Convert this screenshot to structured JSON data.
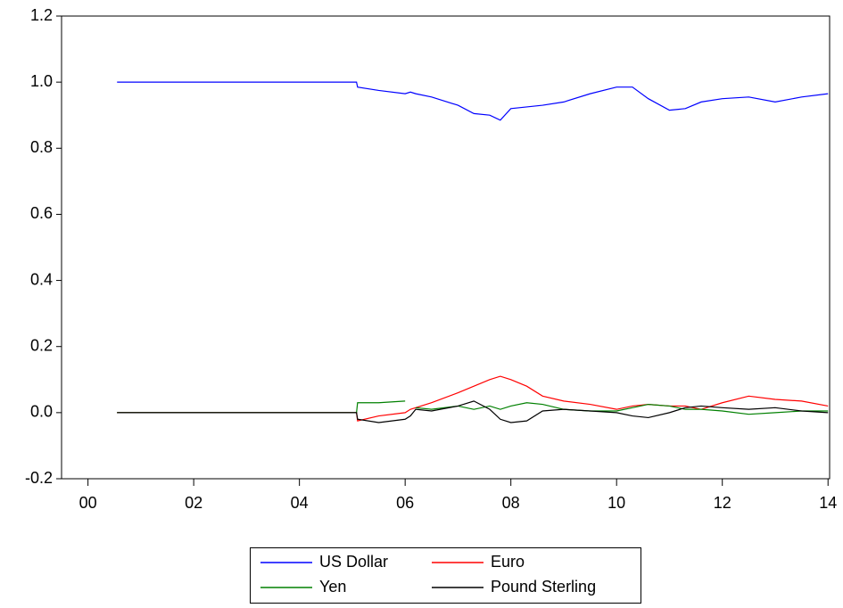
{
  "chart_data": {
    "type": "line",
    "x": [
      2000.55,
      2005.08,
      2005.1,
      2005.5,
      2006.0,
      2006.1,
      2006.2,
      2006.5,
      2007.0,
      2007.3,
      2007.6,
      2007.8,
      2008.0,
      2008.3,
      2008.6,
      2009.0,
      2009.5,
      2010.0,
      2010.3,
      2010.6,
      2011.0,
      2011.3,
      2011.6,
      2012.0,
      2012.5,
      2013.0,
      2013.5,
      2014.0
    ],
    "series": [
      {
        "name": "US Dollar",
        "color": "#0000ff",
        "values": [
          1.0,
          1.0,
          0.985,
          0.975,
          0.965,
          0.97,
          0.965,
          0.955,
          0.93,
          0.905,
          0.9,
          0.885,
          0.92,
          0.925,
          0.93,
          0.94,
          0.965,
          0.985,
          0.985,
          0.95,
          0.915,
          0.92,
          0.94,
          0.95,
          0.955,
          0.94,
          0.955,
          0.965
        ]
      },
      {
        "name": "Euro",
        "color": "#ff0000",
        "values": [
          0,
          0,
          -0.025,
          -0.01,
          0.0,
          0.01,
          0.015,
          0.03,
          0.06,
          0.08,
          0.1,
          0.11,
          0.1,
          0.08,
          0.05,
          0.035,
          0.025,
          0.01,
          0.02,
          0.025,
          0.02,
          0.02,
          0.01,
          0.03,
          0.05,
          0.04,
          0.035,
          0.02
        ]
      },
      {
        "name": "Yen",
        "color": "#008000",
        "values": [
          0,
          0,
          0.03,
          0.03,
          0.035,
          null,
          0.015,
          0.01,
          0.02,
          0.01,
          0.02,
          0.01,
          0.02,
          0.03,
          0.025,
          0.01,
          0.005,
          0.005,
          0.015,
          0.025,
          0.02,
          0.01,
          0.01,
          0.005,
          -0.005,
          0,
          0.005,
          0.005
        ]
      },
      {
        "name": "Pound Sterling",
        "color": "#000000",
        "values": [
          0,
          0,
          -0.02,
          -0.03,
          -0.02,
          -0.01,
          0.01,
          0.005,
          0.02,
          0.035,
          0.01,
          -0.02,
          -0.03,
          -0.025,
          0.005,
          0.01,
          0.005,
          0,
          -0.01,
          -0.015,
          0,
          0.015,
          0.02,
          0.015,
          0.01,
          0.015,
          0.005,
          0
        ]
      }
    ],
    "xlim": [
      1999.5,
      2014.03
    ],
    "xticks": [
      {
        "value": 2000,
        "label": "00"
      },
      {
        "value": 2002,
        "label": "02"
      },
      {
        "value": 2004,
        "label": "04"
      },
      {
        "value": 2006,
        "label": "06"
      },
      {
        "value": 2008,
        "label": "08"
      },
      {
        "value": 2010,
        "label": "10"
      },
      {
        "value": 2012,
        "label": "12"
      },
      {
        "value": 2014,
        "label": "14"
      }
    ],
    "ylim": [
      -0.2,
      1.2
    ],
    "yticks": [
      -0.2,
      {
        "value": 0.0,
        "label": "0.0"
      },
      0.2,
      0.4,
      0.6,
      0.8,
      {
        "value": 1.0,
        "label": "1.0"
      },
      1.2
    ],
    "grid": false
  }
}
